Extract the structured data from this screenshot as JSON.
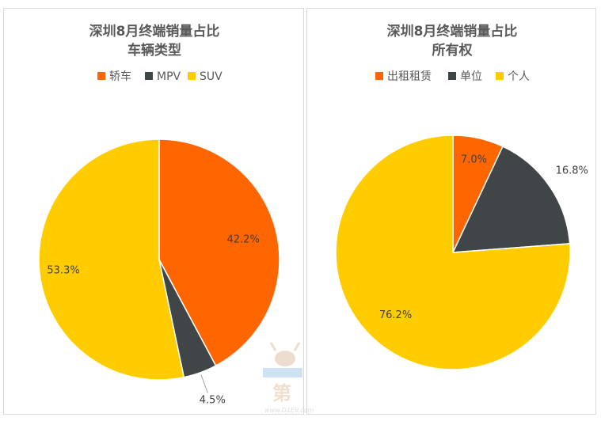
{
  "colors": {
    "orange": "#ff6600",
    "dark": "#404547",
    "yellow": "#ffcc00"
  },
  "chart_data": [
    {
      "type": "pie",
      "title": "深圳8月终端销量占比",
      "subtitle": "车辆类型",
      "legend_position": "top",
      "labels": [
        "轿车",
        "MPV",
        "SUV"
      ],
      "values": [
        42.2,
        4.5,
        53.3
      ],
      "value_labels": [
        "42.2%",
        "4.5%",
        "53.3%"
      ],
      "colors": [
        "#ff6600",
        "#404547",
        "#ffcc00"
      ]
    },
    {
      "type": "pie",
      "title": "深圳8月终端销量占比",
      "subtitle": "所有权",
      "legend_position": "top",
      "labels": [
        "出租租赁",
        "单位",
        "个人"
      ],
      "values": [
        7.0,
        16.8,
        76.2
      ],
      "value_labels": [
        "7.0%",
        "16.8%",
        "76.2%"
      ],
      "colors": [
        "#ff6600",
        "#404547",
        "#ffcc00"
      ]
    }
  ],
  "watermark": {
    "text": "第",
    "url_text": "www.D1EV.com"
  }
}
